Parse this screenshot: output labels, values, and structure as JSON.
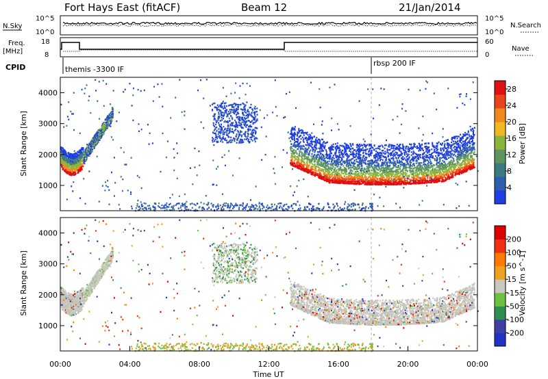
{
  "header": {
    "radar": "Fort Hays East (fitACF)",
    "beam": "Beam 12",
    "date": "21/Jan/2014"
  },
  "strips": {
    "nsky_label": "N.Sky",
    "nsky_ticks": [
      "10^5",
      "10^0"
    ],
    "nsearch_label": "N.Search",
    "nsearch_ticks": [
      "10^5",
      "10^0"
    ],
    "freq_label": "Freq.",
    "freq_unit": "[MHz]",
    "freq_ticks": [
      "18",
      "8"
    ],
    "nave_label": "Nave",
    "nave_ticks": [
      "60",
      "0"
    ],
    "cpid_label": "CPID",
    "cpid_entries": [
      "themis -3300 IF",
      "rbsp 200 IF"
    ]
  },
  "chart_data": [
    {
      "type": "heatmap",
      "panel": "power",
      "x": {
        "label": "Time UT",
        "ticks": [
          "00:00",
          "04:00",
          "08:00",
          "12:00",
          "16:00",
          "20:00",
          "00:00"
        ],
        "range_hours": [
          0,
          24
        ]
      },
      "y": {
        "label": "Slant Range [km]",
        "ticks": [
          1000,
          2000,
          3000,
          4000
        ],
        "range": [
          180,
          4500
        ]
      },
      "colorbar": {
        "label": "Power [dB]",
        "ticks": [
          4,
          8,
          12,
          16,
          20,
          24,
          28
        ],
        "range": [
          0,
          30
        ],
        "colors": [
          "#1f3fe0",
          "#2f5db0",
          "#3f7a82",
          "#5e9560",
          "#8bb53a",
          "#f2b824",
          "#f08a1e",
          "#e8461a",
          "#e01010"
        ]
      },
      "regions": [
        {
          "t": [
            0.0,
            1.3
          ],
          "r": [
            1300,
            2300
          ],
          "level": "mid-high"
        },
        {
          "t": [
            1.3,
            3.0
          ],
          "r": [
            1700,
            3200
          ],
          "level": "low-mid"
        },
        {
          "t": [
            8.7,
            11.3
          ],
          "r": [
            2400,
            3700
          ],
          "level": "low"
        },
        {
          "t": [
            13.2,
            23.8
          ],
          "r": [
            1000,
            2000
          ],
          "level": "high"
        },
        {
          "t": [
            13.2,
            23.8
          ],
          "r": [
            2000,
            3000
          ],
          "level": "low"
        }
      ]
    },
    {
      "type": "heatmap",
      "panel": "velocity",
      "x": {
        "label": "Time UT",
        "ticks": [
          "00:00",
          "04:00",
          "08:00",
          "12:00",
          "16:00",
          "20:00",
          "00:00"
        ],
        "range_hours": [
          0,
          24
        ]
      },
      "y": {
        "label": "Slant Range [km]",
        "ticks": [
          1000,
          2000,
          3000,
          4000
        ],
        "range": [
          180,
          4500
        ]
      },
      "colorbar": {
        "label": "Velocity [m s^-1]",
        "ticks": [
          200,
          100,
          50,
          15,
          -15,
          -50,
          -100,
          -200
        ],
        "range": [
          -250,
          250
        ],
        "colors": [
          "#2233c8",
          "#3f3fa8",
          "#2f8f4f",
          "#70c040",
          "#c8c8c0",
          "#f0a020",
          "#ff7a00",
          "#f03010",
          "#dd0000"
        ]
      },
      "regions": [
        {
          "t": [
            0.0,
            2.5
          ],
          "r": [
            1300,
            3200
          ],
          "value": "ground scatter (grey)"
        },
        {
          "t": [
            8.7,
            11.3
          ],
          "r": [
            2400,
            3700
          ],
          "value": "ground scatter (grey)"
        },
        {
          "t": [
            13.2,
            23.8
          ],
          "r": [
            1000,
            2100
          ],
          "value": "ground scatter (grey)"
        }
      ]
    }
  ]
}
